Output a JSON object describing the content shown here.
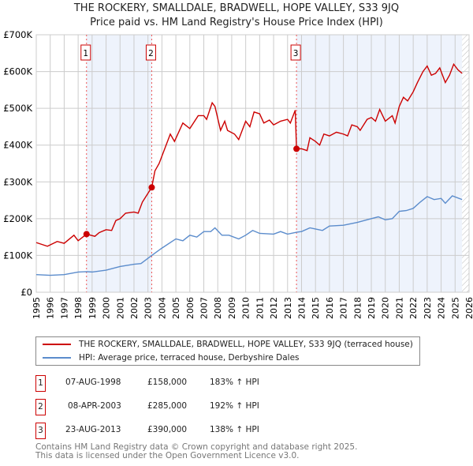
{
  "chart_data": {
    "type": "line",
    "title": "THE ROCKERY, SMALLDALE, BRADWELL, HOPE VALLEY, S33 9JQ",
    "subtitle": "Price paid vs. HM Land Registry's House Price Index (HPI)",
    "xlim": [
      1995,
      2026
    ],
    "ylim": [
      0,
      700000
    ],
    "x_ticks": [
      "1995",
      "1996",
      "1997",
      "1998",
      "1999",
      "2000",
      "2001",
      "2002",
      "2003",
      "2004",
      "2005",
      "2006",
      "2007",
      "2008",
      "2009",
      "2010",
      "2011",
      "2012",
      "2013",
      "2014",
      "2015",
      "2016",
      "2017",
      "2018",
      "2019",
      "2020",
      "2021",
      "2022",
      "2023",
      "2024",
      "2025",
      "2026"
    ],
    "y_ticks": [
      {
        "v": 0,
        "label": "£0"
      },
      {
        "v": 100000,
        "label": "£100K"
      },
      {
        "v": 200000,
        "label": "£200K"
      },
      {
        "v": 300000,
        "label": "£300K"
      },
      {
        "v": 400000,
        "label": "£400K"
      },
      {
        "v": 500000,
        "label": "£500K"
      },
      {
        "v": 600000,
        "label": "£600K"
      },
      {
        "v": 700000,
        "label": "£700K"
      }
    ],
    "grid": true,
    "series": [
      {
        "name": "THE ROCKERY, SMALLDALE, BRADWELL, HOPE VALLEY, S33 9JQ (terraced house)",
        "color": "#cc0000",
        "points": [
          [
            1995,
            135
          ],
          [
            1995.8,
            125
          ],
          [
            1996.5,
            138
          ],
          [
            1997,
            133
          ],
          [
            1997.7,
            155
          ],
          [
            1998,
            140
          ],
          [
            1998.6,
            158
          ],
          [
            1999.2,
            152
          ],
          [
            1999.5,
            162
          ],
          [
            2000,
            170
          ],
          [
            2000.4,
            168
          ],
          [
            2000.7,
            195
          ],
          [
            2001,
            200
          ],
          [
            2001.4,
            215
          ],
          [
            2002,
            218
          ],
          [
            2002.3,
            215
          ],
          [
            2002.6,
            245
          ],
          [
            2003.27,
            285
          ],
          [
            2003.5,
            330
          ],
          [
            2003.8,
            350
          ],
          [
            2004.3,
            400
          ],
          [
            2004.6,
            430
          ],
          [
            2004.9,
            410
          ],
          [
            2005.5,
            460
          ],
          [
            2006,
            445
          ],
          [
            2006.6,
            480
          ],
          [
            2007,
            480
          ],
          [
            2007.2,
            470
          ],
          [
            2007.6,
            515
          ],
          [
            2007.8,
            505
          ],
          [
            2008.2,
            440
          ],
          [
            2008.5,
            465
          ],
          [
            2008.7,
            440
          ],
          [
            2009.2,
            430
          ],
          [
            2009.5,
            415
          ],
          [
            2010,
            465
          ],
          [
            2010.3,
            450
          ],
          [
            2010.6,
            490
          ],
          [
            2011,
            485
          ],
          [
            2011.3,
            460
          ],
          [
            2011.7,
            468
          ],
          [
            2012,
            455
          ],
          [
            2012.5,
            465
          ],
          [
            2013,
            470
          ],
          [
            2013.2,
            460
          ],
          [
            2013.55,
            495
          ],
          [
            2013.64,
            390
          ],
          [
            2014,
            390
          ],
          [
            2014.4,
            385
          ],
          [
            2014.6,
            420
          ],
          [
            2015,
            410
          ],
          [
            2015.3,
            400
          ],
          [
            2015.6,
            430
          ],
          [
            2016,
            425
          ],
          [
            2016.5,
            435
          ],
          [
            2017,
            430
          ],
          [
            2017.3,
            425
          ],
          [
            2017.6,
            455
          ],
          [
            2018,
            450
          ],
          [
            2018.2,
            440
          ],
          [
            2018.7,
            470
          ],
          [
            2019,
            475
          ],
          [
            2019.3,
            465
          ],
          [
            2019.6,
            497
          ],
          [
            2020,
            465
          ],
          [
            2020.5,
            480
          ],
          [
            2020.7,
            460
          ],
          [
            2021,
            505
          ],
          [
            2021.3,
            530
          ],
          [
            2021.6,
            520
          ],
          [
            2022,
            545
          ],
          [
            2022.3,
            570
          ],
          [
            2022.7,
            600
          ],
          [
            2023,
            615
          ],
          [
            2023.3,
            590
          ],
          [
            2023.6,
            595
          ],
          [
            2023.9,
            610
          ],
          [
            2024.3,
            570
          ],
          [
            2024.6,
            590
          ],
          [
            2024.9,
            620
          ],
          [
            2025.2,
            605
          ],
          [
            2025.5,
            595
          ]
        ]
      },
      {
        "name": "HPI: Average price, terraced house, Derbyshire Dales",
        "color": "#5b8ccc",
        "points": [
          [
            1995,
            48
          ],
          [
            1996,
            46
          ],
          [
            1997,
            48
          ],
          [
            1998,
            55
          ],
          [
            1998.6,
            56
          ],
          [
            1999,
            55
          ],
          [
            2000,
            60
          ],
          [
            2001,
            70
          ],
          [
            2002,
            76
          ],
          [
            2002.5,
            78
          ],
          [
            2003.27,
            100
          ],
          [
            2004,
            120
          ],
          [
            2005,
            145
          ],
          [
            2005.5,
            140
          ],
          [
            2006,
            155
          ],
          [
            2006.5,
            150
          ],
          [
            2007,
            165
          ],
          [
            2007.5,
            165
          ],
          [
            2007.8,
            175
          ],
          [
            2008.3,
            155
          ],
          [
            2008.8,
            155
          ],
          [
            2009.5,
            145
          ],
          [
            2010,
            155
          ],
          [
            2010.5,
            168
          ],
          [
            2011,
            160
          ],
          [
            2012,
            158
          ],
          [
            2012.5,
            165
          ],
          [
            2013,
            158
          ],
          [
            2013.64,
            163
          ],
          [
            2014,
            165
          ],
          [
            2014.6,
            175
          ],
          [
            2015,
            172
          ],
          [
            2015.5,
            168
          ],
          [
            2016,
            180
          ],
          [
            2017,
            182
          ],
          [
            2018,
            190
          ],
          [
            2018.5,
            195
          ],
          [
            2019,
            200
          ],
          [
            2019.5,
            205
          ],
          [
            2020,
            197
          ],
          [
            2020.5,
            200
          ],
          [
            2021,
            220
          ],
          [
            2021.5,
            222
          ],
          [
            2022,
            228
          ],
          [
            2022.5,
            245
          ],
          [
            2023,
            260
          ],
          [
            2023.5,
            252
          ],
          [
            2024,
            255
          ],
          [
            2024.3,
            242
          ],
          [
            2024.8,
            262
          ],
          [
            2025.5,
            252
          ]
        ]
      }
    ],
    "point_units": "thousands GBP",
    "sales": [
      {
        "label": "1",
        "x": 1998.6,
        "y": 158000,
        "date": "07-AUG-1998",
        "price": "£158,000",
        "hpi": "183% ↑ HPI"
      },
      {
        "label": "2",
        "x": 2003.27,
        "y": 285000,
        "date": "08-APR-2003",
        "price": "£285,000",
        "hpi": "192% ↑ HPI"
      },
      {
        "label": "3",
        "x": 2013.64,
        "y": 390000,
        "date": "23-AUG-2013",
        "price": "£390,000",
        "hpi": "138% ↑ HPI"
      }
    ],
    "forecast_from": 2025.5,
    "legend_placement": "below"
  },
  "footer": [
    "Contains HM Land Registry data © Crown copyright and database right 2025.",
    "This data is licensed under the Open Government Licence v3.0."
  ]
}
